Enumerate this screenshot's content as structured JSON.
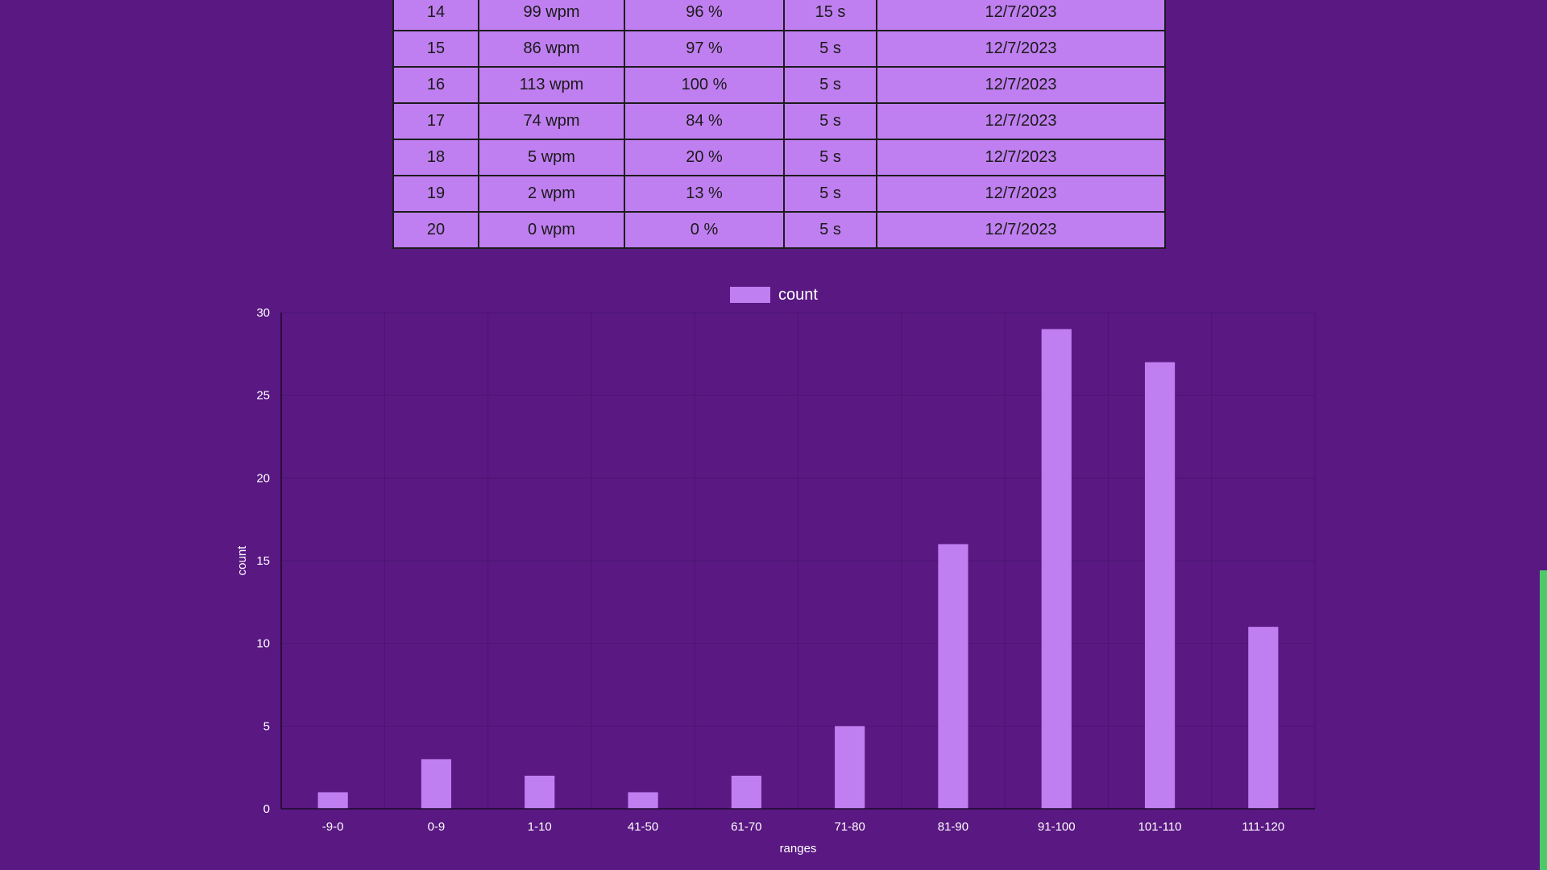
{
  "results_table": {
    "rows": [
      {
        "index": "14",
        "speed": "99 wpm",
        "accuracy": "96 %",
        "time": "15 s",
        "date": "12/7/2023"
      },
      {
        "index": "15",
        "speed": "86 wpm",
        "accuracy": "97 %",
        "time": "5 s",
        "date": "12/7/2023"
      },
      {
        "index": "16",
        "speed": "113 wpm",
        "accuracy": "100 %",
        "time": "5 s",
        "date": "12/7/2023"
      },
      {
        "index": "17",
        "speed": "74 wpm",
        "accuracy": "84 %",
        "time": "5 s",
        "date": "12/7/2023"
      },
      {
        "index": "18",
        "speed": "5 wpm",
        "accuracy": "20 %",
        "time": "5 s",
        "date": "12/7/2023"
      },
      {
        "index": "19",
        "speed": "2 wpm",
        "accuracy": "13 %",
        "time": "5 s",
        "date": "12/7/2023"
      },
      {
        "index": "20",
        "speed": "0 wpm",
        "accuracy": "0 %",
        "time": "5 s",
        "date": "12/7/2023"
      }
    ]
  },
  "chart_data": {
    "type": "bar",
    "title": "",
    "xlabel": "ranges",
    "ylabel": "count",
    "categories": [
      "-9-0",
      "0-9",
      "1-10",
      "41-50",
      "61-70",
      "71-80",
      "81-90",
      "91-100",
      "101-110",
      "111-120"
    ],
    "series": [
      {
        "name": "count",
        "values": [
          1,
          3,
          2,
          1,
          2,
          5,
          16,
          29,
          27,
          11
        ]
      }
    ],
    "ylim": [
      0,
      30
    ],
    "yticks": [
      0,
      5,
      10,
      15,
      20,
      25,
      30
    ],
    "grid": true,
    "legend_position": "top-center",
    "colors": {
      "background": "#5a1883",
      "bar": "#c07ff0",
      "grid": "#4a1570",
      "axis": "#1a0a2a",
      "text": "#ffffff"
    }
  },
  "scrollbar": {
    "thumb_color": "#4ec96a",
    "position_fraction": 0.66
  }
}
